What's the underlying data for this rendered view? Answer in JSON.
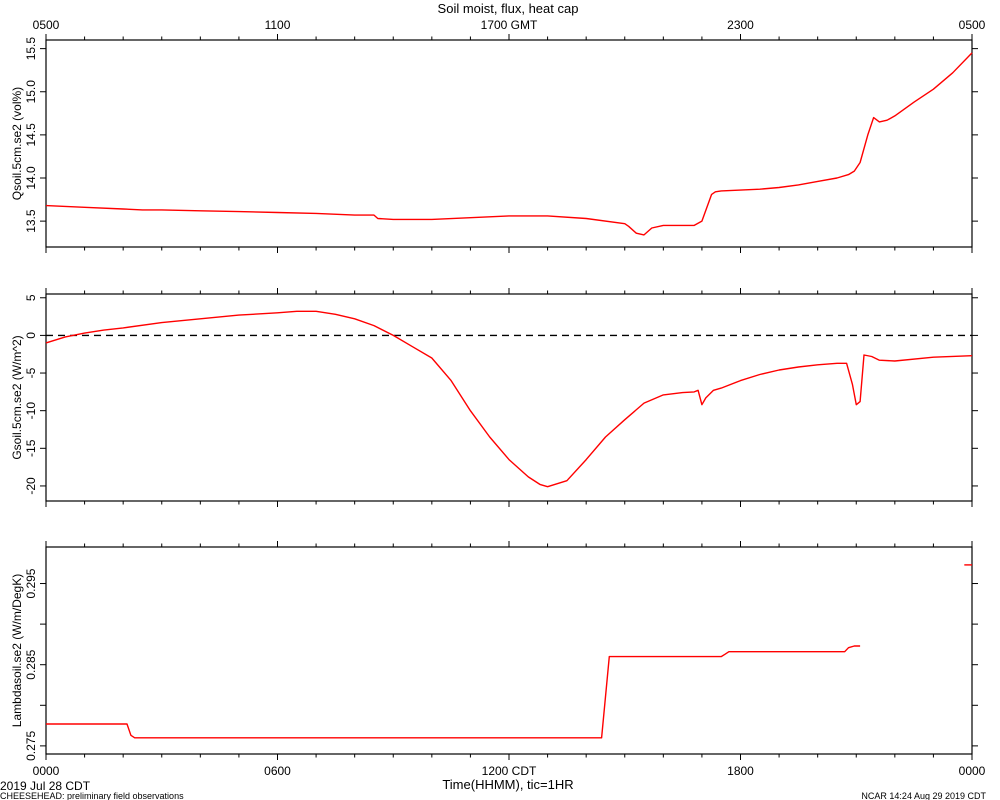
{
  "chart_data": {
    "type": "line",
    "title": "Soil moist, flux, heat cap",
    "top_axis": {
      "unit_label": "GMT",
      "tick_labels": [
        "0500",
        "1100",
        "1700 GMT",
        "2300",
        "0500"
      ],
      "tick_hours": [
        0,
        6,
        12,
        18,
        24
      ]
    },
    "bottom_axis": {
      "xlabel": "Time(HHMM), tic=1HR",
      "tick_labels": [
        "0000",
        "0600",
        "1200 CDT",
        "1800",
        "0000"
      ],
      "tick_hours": [
        0,
        6,
        12,
        18,
        24
      ],
      "xlim": [
        0,
        24
      ]
    },
    "line_color": "#ff0000",
    "panels": [
      {
        "ylabel": "Qsoil.5cm.se2 (vol%)",
        "ylim": [
          13.2,
          15.6
        ],
        "yticks": [
          13.5,
          14.0,
          14.5,
          15.0,
          15.5
        ],
        "ytick_labels": [
          "13.5",
          "14.0",
          "14.5",
          "15.0",
          "15.5"
        ],
        "reference_line": null,
        "series": [
          {
            "x": [
              0,
              1,
              2,
              2.5,
              3,
              4,
              5,
              6,
              7,
              8,
              8.5,
              8.6,
              9,
              10,
              11,
              12,
              13,
              14,
              15,
              15.1,
              15.3,
              15.5,
              15.7,
              16,
              16.5,
              16.8,
              17,
              17.25,
              17.35,
              17.5,
              18,
              18.5,
              19,
              19.5,
              20,
              20.5,
              20.8,
              20.95,
              21.1,
              21.3,
              21.45,
              21.6,
              21.8,
              22,
              22.5,
              23,
              23.5,
              24
            ],
            "y": [
              13.68,
              13.66,
              13.64,
              13.63,
              13.63,
              13.62,
              13.61,
              13.6,
              13.59,
              13.57,
              13.57,
              13.53,
              13.52,
              13.52,
              13.54,
              13.56,
              13.56,
              13.53,
              13.47,
              13.44,
              13.36,
              13.34,
              13.42,
              13.45,
              13.45,
              13.45,
              13.5,
              13.81,
              13.84,
              13.85,
              13.86,
              13.87,
              13.89,
              13.92,
              13.96,
              14.0,
              14.04,
              14.08,
              14.18,
              14.5,
              14.7,
              14.65,
              14.67,
              14.72,
              14.88,
              15.03,
              15.22,
              15.45
            ]
          }
        ]
      },
      {
        "ylabel": "Gsoil.5cm.se2 (W/m^2)",
        "ylim": [
          -22,
          5.5
        ],
        "yticks": [
          -20,
          -15,
          -10,
          -5,
          0,
          5
        ],
        "ytick_labels": [
          "-20",
          "-15",
          "-10",
          "-5",
          "0",
          "5"
        ],
        "reference_line": 0,
        "series": [
          {
            "x": [
              0,
              0.5,
              1,
              1.5,
              2,
              3,
              4,
              5,
              6,
              6.5,
              7,
              7.5,
              8,
              8.5,
              9,
              9.5,
              10,
              10.5,
              11,
              11.5,
              12,
              12.5,
              12.8,
              13,
              13.5,
              14,
              14.5,
              15,
              15.5,
              16,
              16.5,
              16.8,
              16.9,
              17,
              17.1,
              17.3,
              17.5,
              18,
              18.5,
              19,
              19.5,
              20,
              20.5,
              20.75,
              20.9,
              21,
              21.1,
              21.2,
              21.4,
              21.6,
              22,
              23,
              24
            ],
            "y": [
              -1.0,
              -0.2,
              0.3,
              0.7,
              1.0,
              1.7,
              2.2,
              2.7,
              3.0,
              3.2,
              3.2,
              2.8,
              2.2,
              1.3,
              0,
              -1.5,
              -3.0,
              -6.0,
              -10.0,
              -13.5,
              -16.5,
              -18.8,
              -19.8,
              -20.1,
              -19.3,
              -16.5,
              -13.5,
              -11.2,
              -9.0,
              -7.9,
              -7.6,
              -7.5,
              -7.3,
              -9.2,
              -8.3,
              -7.3,
              -7.0,
              -6.0,
              -5.2,
              -4.6,
              -4.2,
              -3.9,
              -3.7,
              -3.7,
              -6.5,
              -9.2,
              -8.8,
              -2.6,
              -2.8,
              -3.3,
              -3.4,
              -2.9,
              -2.7
            ]
          }
        ]
      },
      {
        "ylabel": "Lambdasoil.se2 (W/m/DegK)",
        "ylim": [
          0.274,
          0.2995
        ],
        "yticks": [
          0.275,
          0.28,
          0.285,
          0.29,
          0.295
        ],
        "ytick_labels": [
          "0.275",
          "",
          "0.285",
          "",
          "0.295"
        ],
        "reference_line": null,
        "series": [
          {
            "x": [
              0,
              2.1,
              2.2,
              2.3,
              14.4,
              14.6,
              17.5,
              17.6,
              17.7,
              18.3,
              20.7,
              20.8,
              20.95,
              21.1
            ],
            "y": [
              0.2777,
              0.2777,
              0.2763,
              0.276,
              0.276,
              0.286,
              0.286,
              0.2863,
              0.2866,
              0.2866,
              0.2866,
              0.2871,
              0.2873,
              0.2873
            ]
          },
          {
            "x": [
              23.8,
              24
            ],
            "y": [
              0.2973,
              0.2973
            ]
          }
        ]
      }
    ]
  },
  "footer": {
    "left_date": "2019 Jul 28 CDT",
    "project_note": "CHEESEHEAD: preliminary field observations",
    "right_stamp": "NCAR 14:24 Aug 29 2019 CDT"
  }
}
